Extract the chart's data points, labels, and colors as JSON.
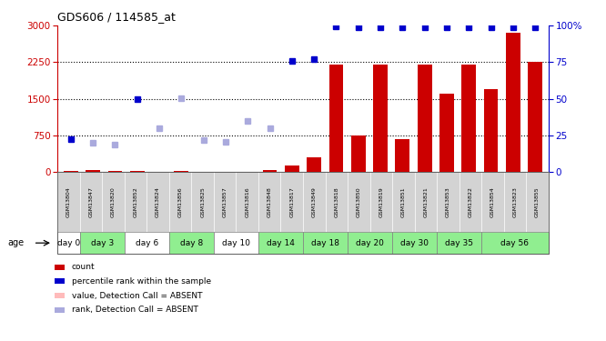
{
  "title": "GDS606 / 114585_at",
  "samples": [
    "GSM13804",
    "GSM13847",
    "GSM13820",
    "GSM13852",
    "GSM13824",
    "GSM13856",
    "GSM13825",
    "GSM13857",
    "GSM13816",
    "GSM13848",
    "GSM13817",
    "GSM13849",
    "GSM13818",
    "GSM13850",
    "GSM13819",
    "GSM13851",
    "GSM13821",
    "GSM13853",
    "GSM13822",
    "GSM13854",
    "GSM13823",
    "GSM13855"
  ],
  "day_spans": [
    {
      "label": "day 0",
      "start": 0,
      "end": 1,
      "color": "#ffffff"
    },
    {
      "label": "day 3",
      "start": 1,
      "end": 3,
      "color": "#90ee90"
    },
    {
      "label": "day 6",
      "start": 3,
      "end": 5,
      "color": "#ffffff"
    },
    {
      "label": "day 8",
      "start": 5,
      "end": 7,
      "color": "#90ee90"
    },
    {
      "label": "day 10",
      "start": 7,
      "end": 9,
      "color": "#ffffff"
    },
    {
      "label": "day 14",
      "start": 9,
      "end": 11,
      "color": "#90ee90"
    },
    {
      "label": "day 18",
      "start": 11,
      "end": 13,
      "color": "#90ee90"
    },
    {
      "label": "day 20",
      "start": 13,
      "end": 15,
      "color": "#90ee90"
    },
    {
      "label": "day 30",
      "start": 15,
      "end": 17,
      "color": "#90ee90"
    },
    {
      "label": "day 35",
      "start": 17,
      "end": 19,
      "color": "#90ee90"
    },
    {
      "label": "day 56",
      "start": 19,
      "end": 22,
      "color": "#90ee90"
    }
  ],
  "count_values": [
    30,
    40,
    30,
    30,
    5,
    30,
    5,
    10,
    5,
    50,
    130,
    300,
    2200,
    750,
    2200,
    680,
    2200,
    1600,
    2200,
    1700,
    2850,
    2250
  ],
  "count_absent": [
    false,
    false,
    false,
    false,
    true,
    false,
    false,
    false,
    false,
    false,
    false,
    false,
    false,
    false,
    false,
    false,
    false,
    false,
    false,
    false,
    false,
    false
  ],
  "rank_values": [
    680,
    600,
    560,
    1500,
    900,
    1520,
    650,
    620,
    1050,
    900,
    2280,
    2320,
    2980,
    2960,
    2960,
    2960,
    2960,
    2960,
    2960,
    2960,
    2960,
    2960
  ],
  "rank_absent": [
    false,
    true,
    true,
    false,
    true,
    true,
    true,
    true,
    true,
    true,
    false,
    false,
    false,
    false,
    false,
    false,
    false,
    false,
    false,
    false,
    false,
    false
  ],
  "ylim_left": [
    0,
    3000
  ],
  "ylim_right": [
    0,
    100
  ],
  "yticks_left": [
    0,
    750,
    1500,
    2250,
    3000
  ],
  "yticks_right": [
    0,
    25,
    50,
    75,
    100
  ],
  "bar_color": "#cc0000",
  "bar_absent_color": "#ffbbbb",
  "rank_present_color": "#0000cc",
  "rank_absent_color": "#aaaadd",
  "sample_bg_color": "#d3d3d3",
  "legend_items": [
    {
      "color": "#cc0000",
      "label": "count"
    },
    {
      "color": "#0000cc",
      "label": "percentile rank within the sample"
    },
    {
      "color": "#ffbbbb",
      "label": "value, Detection Call = ABSENT"
    },
    {
      "color": "#aaaadd",
      "label": "rank, Detection Call = ABSENT"
    }
  ]
}
